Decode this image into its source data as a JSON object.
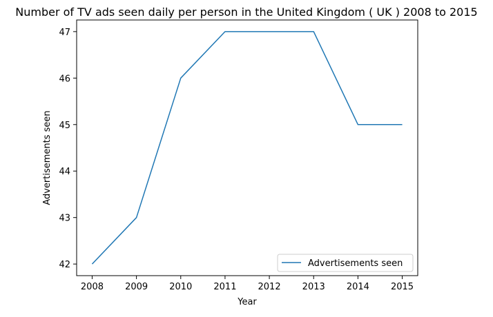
{
  "chart_data": {
    "type": "line",
    "title": "Number of TV ads seen daily per person in the United Kingdom ( UK ) 2008 to 2015",
    "xlabel": "Year",
    "ylabel": "Advertisements seen",
    "x": [
      2008,
      2009,
      2010,
      2011,
      2012,
      2013,
      2014,
      2015
    ],
    "x_tick_labels": [
      "2008",
      "2009",
      "2010",
      "2011",
      "2012",
      "2013",
      "2014",
      "2015"
    ],
    "y_ticks": [
      42,
      43,
      44,
      45,
      46,
      47
    ],
    "y_tick_labels": [
      "42",
      "43",
      "44",
      "45",
      "46",
      "47"
    ],
    "series": [
      {
        "name": "Advertisements seen",
        "values": [
          42,
          43,
          46,
          47,
          47,
          47,
          45,
          45
        ],
        "color": "#1f77b4"
      }
    ],
    "legend": {
      "position": "lower-right",
      "label": "Advertisements seen"
    },
    "grid": false
  }
}
